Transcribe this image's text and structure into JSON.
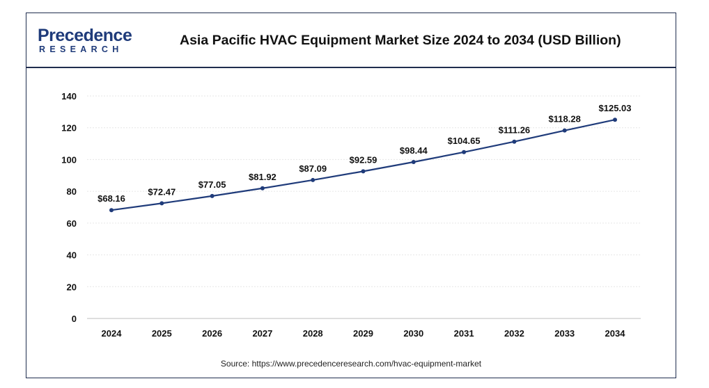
{
  "brand": {
    "logo_word": "Precedence",
    "logo_sub": "RESEARCH"
  },
  "chart_data": {
    "type": "line",
    "title": "Asia Pacific HVAC Equipment Market Size 2024 to 2034 (USD Billion)",
    "xlabel": "",
    "ylabel": "",
    "categories": [
      "2024",
      "2025",
      "2026",
      "2027",
      "2028",
      "2029",
      "2030",
      "2031",
      "2032",
      "2033",
      "2034"
    ],
    "series": [
      {
        "values": [
          68.16,
          72.47,
          77.05,
          81.92,
          87.09,
          92.59,
          98.44,
          104.65,
          111.26,
          118.28,
          125.03
        ],
        "labels": [
          "$68.16",
          "$72.47",
          "$77.05",
          "$81.92",
          "$87.09",
          "$92.59",
          "$98.44",
          "$104.65",
          "$111.26",
          "$118.28",
          "$125.03"
        ],
        "color": "#1f3b7a"
      }
    ],
    "ylim": [
      0,
      140
    ],
    "yticks": [
      "0",
      "20",
      "40",
      "60",
      "80",
      "100",
      "120",
      "140"
    ],
    "grid": true,
    "source": "Source: https://www.precedenceresearch.com/hvac-equipment-market"
  }
}
